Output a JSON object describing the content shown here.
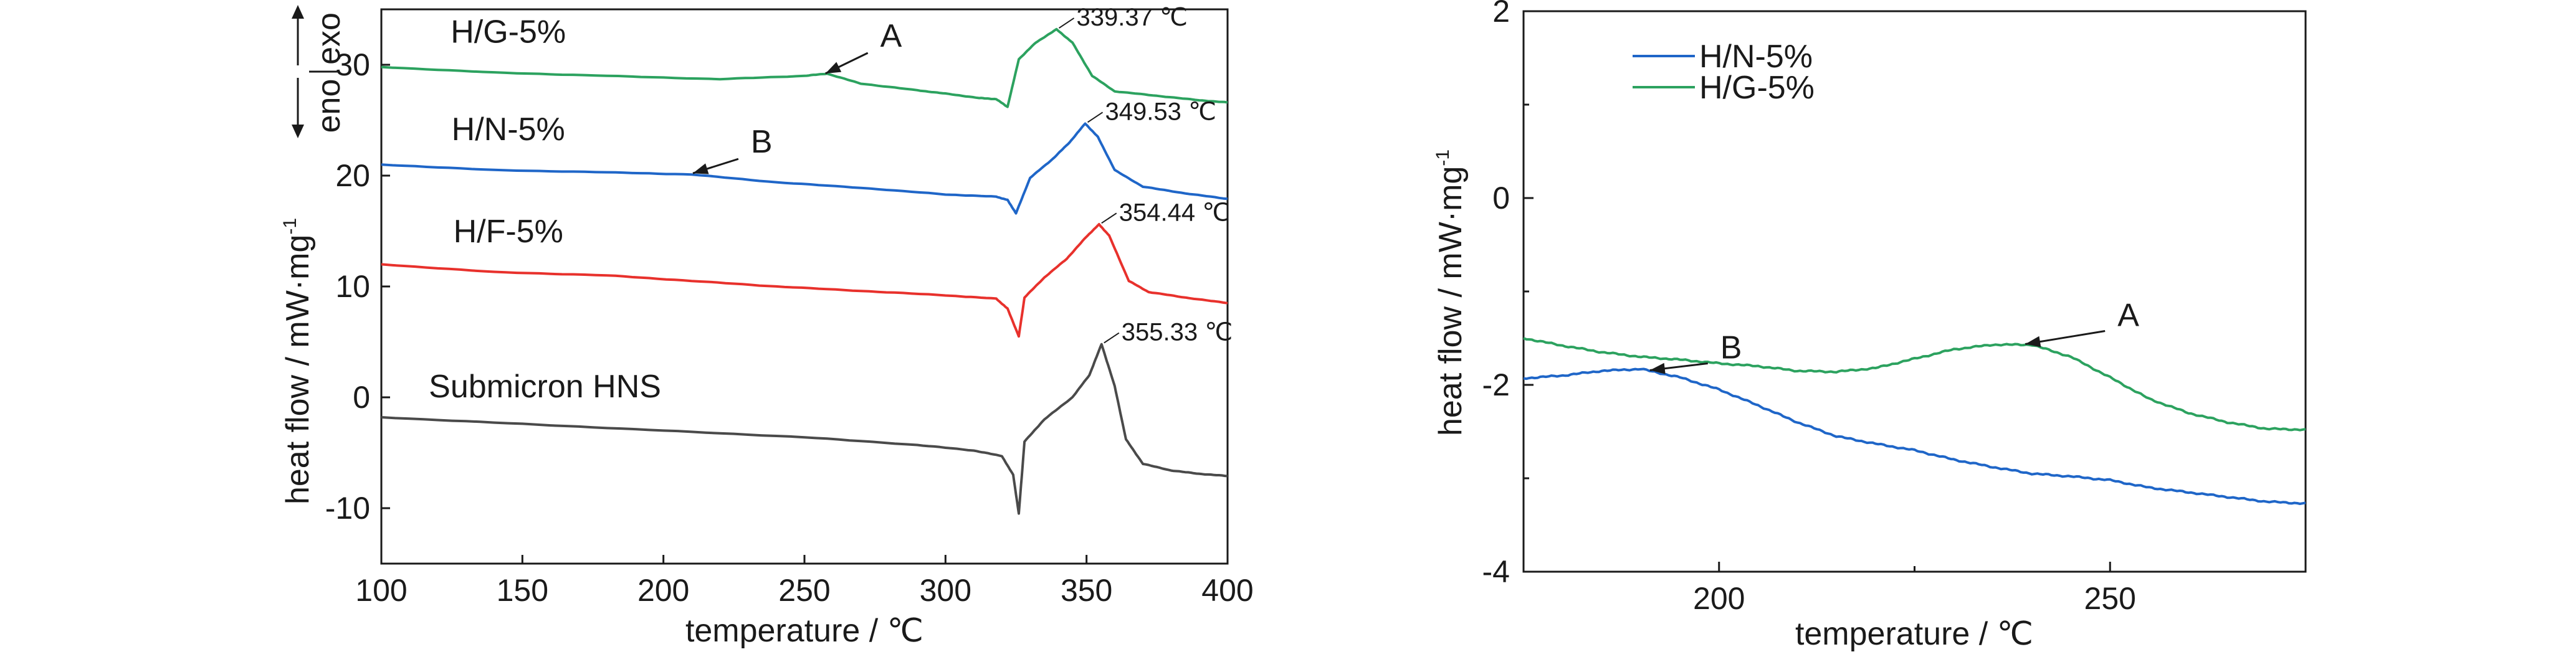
{
  "chart_data": [
    {
      "type": "line",
      "title": "",
      "xlabel": "temperature / ℃",
      "ylabel": "heat flow / mW·mg",
      "ylabel_superscript": "-1",
      "xlim": [
        100,
        400
      ],
      "ylim": [
        -15,
        35
      ],
      "xticks": [
        100,
        150,
        200,
        250,
        300,
        350,
        400
      ],
      "yticks": [
        -10,
        0,
        10,
        20,
        30
      ],
      "grid": false,
      "direction_labels": {
        "exo": "exo",
        "endo": "eno"
      },
      "series": [
        {
          "name": "H/G-5%",
          "color": "#2ca25f",
          "x": [
            100,
            140,
            180,
            220,
            250,
            258,
            270,
            290,
            300,
            312,
            318,
            322,
            326,
            332,
            339.37,
            345,
            352,
            360,
            375,
            390,
            400
          ],
          "y": [
            29.8,
            29.3,
            29.0,
            28.7,
            29.0,
            29.2,
            28.3,
            27.7,
            27.4,
            27.0,
            26.9,
            26.2,
            30.5,
            32.0,
            33.2,
            32.0,
            29.0,
            27.6,
            27.2,
            26.8,
            26.6
          ]
        },
        {
          "name": "H/N-5%",
          "color": "#1f66c8",
          "x": [
            100,
            140,
            180,
            210,
            240,
            270,
            300,
            318,
            322,
            325,
            330,
            338,
            344,
            349.53,
            354,
            360,
            370,
            385,
            400
          ],
          "y": [
            21.0,
            20.5,
            20.3,
            20.1,
            19.4,
            18.9,
            18.3,
            18.1,
            17.8,
            16.6,
            19.8,
            21.5,
            23.0,
            24.7,
            23.5,
            20.5,
            19.0,
            18.4,
            17.9
          ]
        },
        {
          "name": "H/F-5%",
          "color": "#e8312c",
          "x": [
            100,
            140,
            180,
            210,
            240,
            270,
            300,
            318,
            322,
            326,
            328,
            335,
            343,
            350,
            354.44,
            358,
            365,
            372,
            385,
            400
          ],
          "y": [
            12.0,
            11.3,
            11.0,
            10.5,
            10.0,
            9.6,
            9.2,
            8.9,
            8.0,
            5.5,
            9.0,
            10.8,
            12.5,
            14.5,
            15.6,
            14.6,
            10.5,
            9.5,
            9.0,
            8.5
          ]
        },
        {
          "name": "Submicron HNS",
          "color": "#4a4a4a",
          "x": [
            100,
            150,
            200,
            250,
            290,
            310,
            320,
            324,
            326,
            328,
            335,
            345,
            351,
            355.33,
            360,
            364,
            370,
            380,
            390,
            400
          ],
          "y": [
            -1.8,
            -2.4,
            -3.0,
            -3.6,
            -4.3,
            -4.8,
            -5.3,
            -7.0,
            -10.5,
            -4.0,
            -2.0,
            0.0,
            2.0,
            4.8,
            1.0,
            -3.8,
            -6.0,
            -6.6,
            -6.9,
            -7.1
          ]
        }
      ],
      "annotations": {
        "peaks": [
          {
            "series": "H/G-5%",
            "x": 339.37,
            "y": 33.2,
            "label": "339.37 ℃"
          },
          {
            "series": "H/N-5%",
            "x": 349.53,
            "y": 24.7,
            "label": "349.53 ℃"
          },
          {
            "series": "H/F-5%",
            "x": 354.44,
            "y": 15.6,
            "label": "354.44 ℃"
          },
          {
            "series": "Submicron HNS",
            "x": 355.33,
            "y": 4.8,
            "label": "355.33 ℃"
          }
        ],
        "markers": [
          {
            "label": "A",
            "x": 257,
            "y": 29.1
          },
          {
            "label": "B",
            "x": 210,
            "y": 20.1
          }
        ]
      }
    },
    {
      "type": "line",
      "title": "",
      "xlabel": "temperature / ℃",
      "ylabel": "heat flow / mW·mg",
      "ylabel_superscript": "-1",
      "xlim": [
        175,
        275
      ],
      "ylim": [
        -4,
        2
      ],
      "xticks": [
        200,
        250
      ],
      "xticks_minor": [
        175,
        225,
        275
      ],
      "yticks": [
        -4,
        -2,
        0,
        2
      ],
      "yticks_minor": [
        -3,
        -1,
        1
      ],
      "grid": false,
      "legend": {
        "position": "top-left"
      },
      "series": [
        {
          "name": "H/N-5%",
          "color": "#1f66c8",
          "x": [
            175,
            180,
            185,
            190,
            195,
            200,
            205,
            210,
            215,
            220,
            225,
            230,
            235,
            240,
            245,
            250,
            255,
            260,
            265,
            270,
            275
          ],
          "y": [
            -1.93,
            -1.9,
            -1.85,
            -1.83,
            -1.92,
            -2.05,
            -2.22,
            -2.4,
            -2.55,
            -2.63,
            -2.7,
            -2.8,
            -2.88,
            -2.95,
            -2.98,
            -3.02,
            -3.1,
            -3.15,
            -3.2,
            -3.25,
            -3.27
          ]
        },
        {
          "name": "H/G-5%",
          "color": "#2ca25f",
          "x": [
            175,
            180,
            185,
            190,
            195,
            200,
            205,
            210,
            215,
            220,
            225,
            230,
            235,
            240,
            245,
            250,
            255,
            260,
            265,
            270,
            275
          ],
          "y": [
            -1.5,
            -1.58,
            -1.65,
            -1.7,
            -1.73,
            -1.77,
            -1.8,
            -1.85,
            -1.86,
            -1.82,
            -1.72,
            -1.62,
            -1.57,
            -1.57,
            -1.7,
            -1.92,
            -2.15,
            -2.3,
            -2.4,
            -2.47,
            -2.48
          ]
        }
      ],
      "annotations": {
        "markers": [
          {
            "label": "A",
            "x": 239,
            "y": -1.57
          },
          {
            "label": "B",
            "x": 191,
            "y": -1.85
          }
        ]
      }
    }
  ]
}
